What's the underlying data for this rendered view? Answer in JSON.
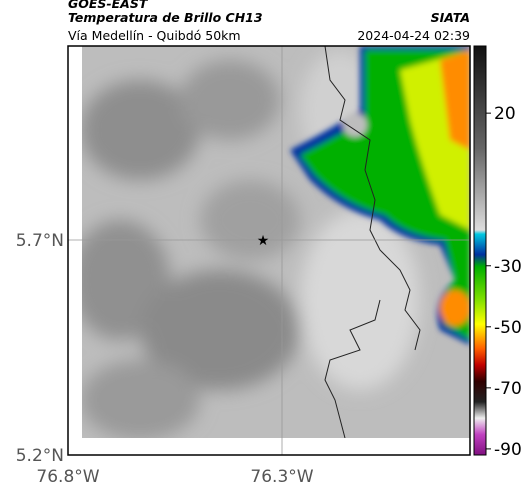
{
  "header": {
    "title": "GOES-EAST",
    "subtitle": "Temperatura de Brillo CH13",
    "location": "Vía Medellín - Quibdó 50km",
    "source": "SIATA",
    "timestamp": "2024-04-24 02:39"
  },
  "map": {
    "lat_ticks": [
      "5.7°N",
      "5.2°N"
    ],
    "lon_ticks": [
      "76.8°W",
      "76.3°W"
    ]
  },
  "colorbar": {
    "limits": [
      -92,
      42
    ],
    "ticks": [
      20,
      -30,
      -50,
      -70,
      -90
    ]
  }
}
